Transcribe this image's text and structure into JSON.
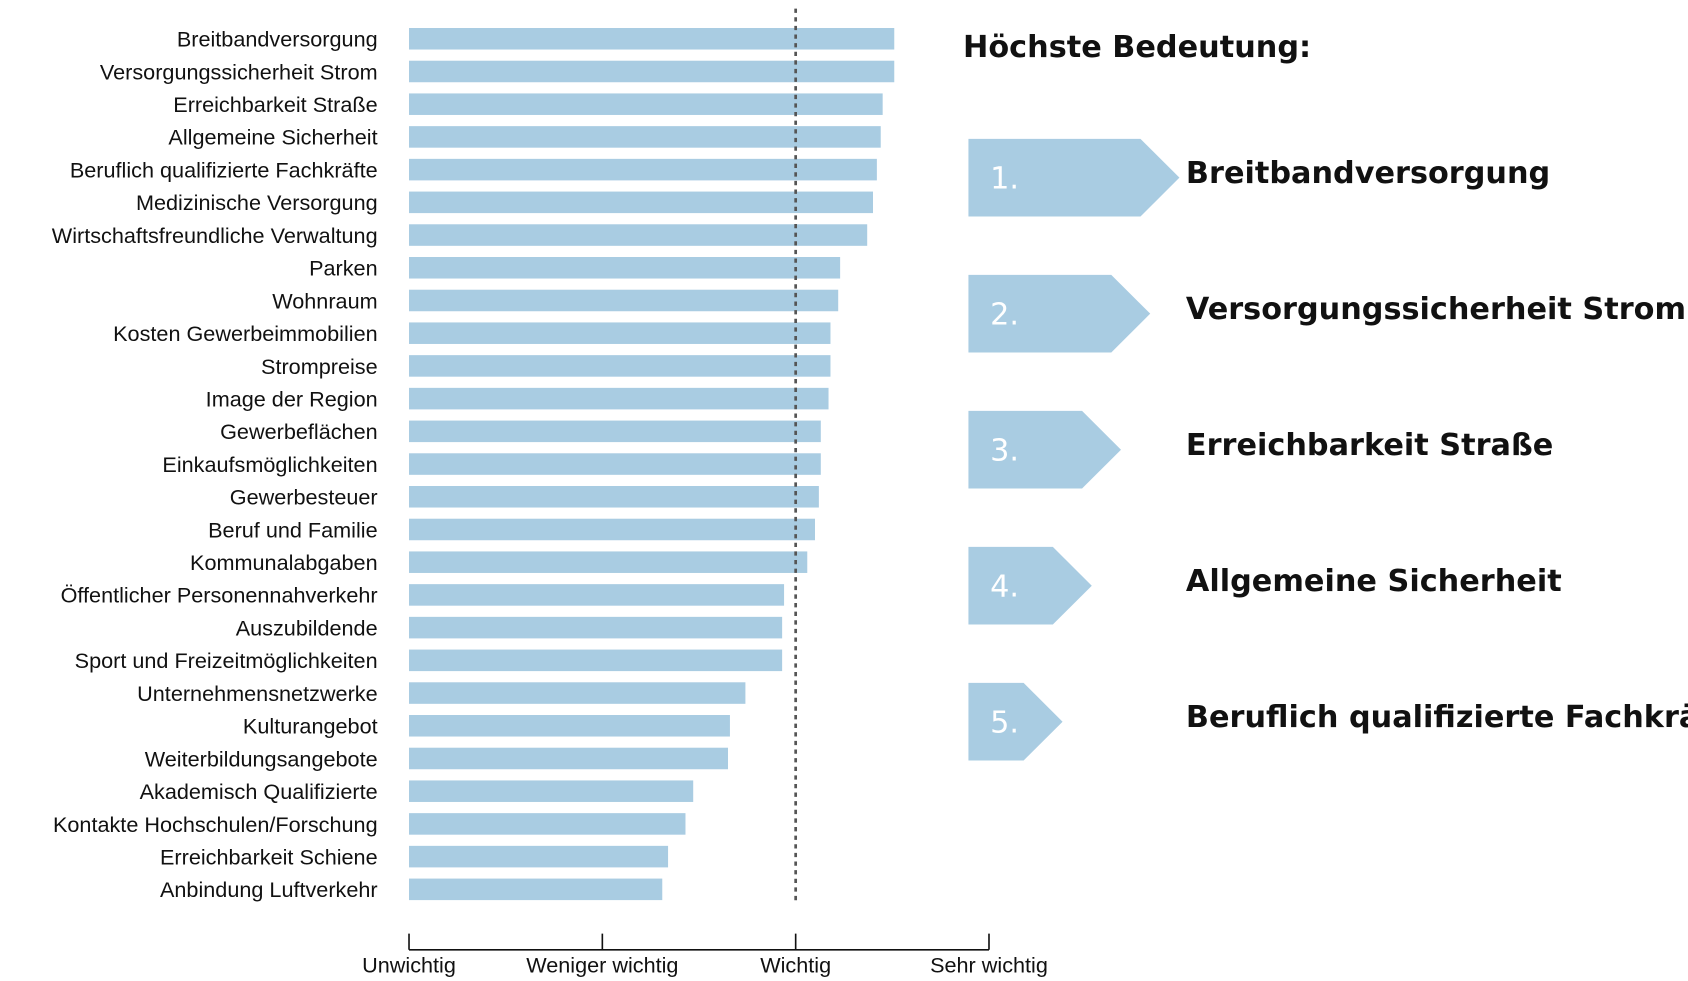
{
  "chart_data": {
    "type": "bar",
    "orientation": "horizontal",
    "categories": [
      "Breitbandversorgung",
      "Versorgungssicherheit Strom",
      "Erreichbarkeit Straße",
      "Allgemeine Sicherheit",
      "Beruflich qualifizierte Fachkräfte",
      "Medizinische Versorgung",
      "Wirtschaftsfreundliche Verwaltung",
      "Parken",
      "Wohnraum",
      "Kosten Gewerbeimmobilien",
      "Strompreise",
      "Image der Region",
      "Gewerbeflächen",
      "Einkaufsmöglichkeiten",
      "Gewerbesteuer",
      "Beruf und Familie",
      "Kommunalabgaben",
      "Öffentlicher Personennahverkehr",
      "Auszubildende",
      "Sport und Freizeitmöglichkeiten",
      "Unternehmensnetzwerke",
      "Kulturangebot",
      "Weiterbildungsangebote",
      "Akademisch Qualifizierte",
      "Kontakte Hochschulen/Forschung",
      "Erreichbarkeit Schiene",
      "Anbindung Luftverkehr"
    ],
    "values": [
      3.51,
      3.51,
      3.45,
      3.44,
      3.42,
      3.4,
      3.37,
      3.23,
      3.22,
      3.18,
      3.18,
      3.17,
      3.13,
      3.13,
      3.12,
      3.1,
      3.06,
      2.94,
      2.93,
      2.93,
      2.74,
      2.66,
      2.65,
      2.47,
      2.43,
      2.34,
      2.31
    ],
    "color": "#a9cce2",
    "xlim": [
      1,
      4
    ],
    "xticks": [
      {
        "value": 1,
        "label": "Unwichtig"
      },
      {
        "value": 2,
        "label": "Weniger wichtig"
      },
      {
        "value": 3,
        "label": "Wichtig"
      },
      {
        "value": 4,
        "label": "Sehr wichtig"
      }
    ],
    "reference_line": 3,
    "highlight": {
      "title": "Höchste Bedeutung:",
      "items": [
        {
          "rank": "1.",
          "label": "Breitbandversorgung"
        },
        {
          "rank": "2.",
          "label": "Versorgungssicherheit Strom"
        },
        {
          "rank": "3.",
          "label": "Erreichbarkeit Straße"
        },
        {
          "rank": "4.",
          "label": "Allgemeine Sicherheit"
        },
        {
          "rank": "5.",
          "label": "Beruflich qualifizierte Fachkräfte"
        }
      ]
    }
  }
}
